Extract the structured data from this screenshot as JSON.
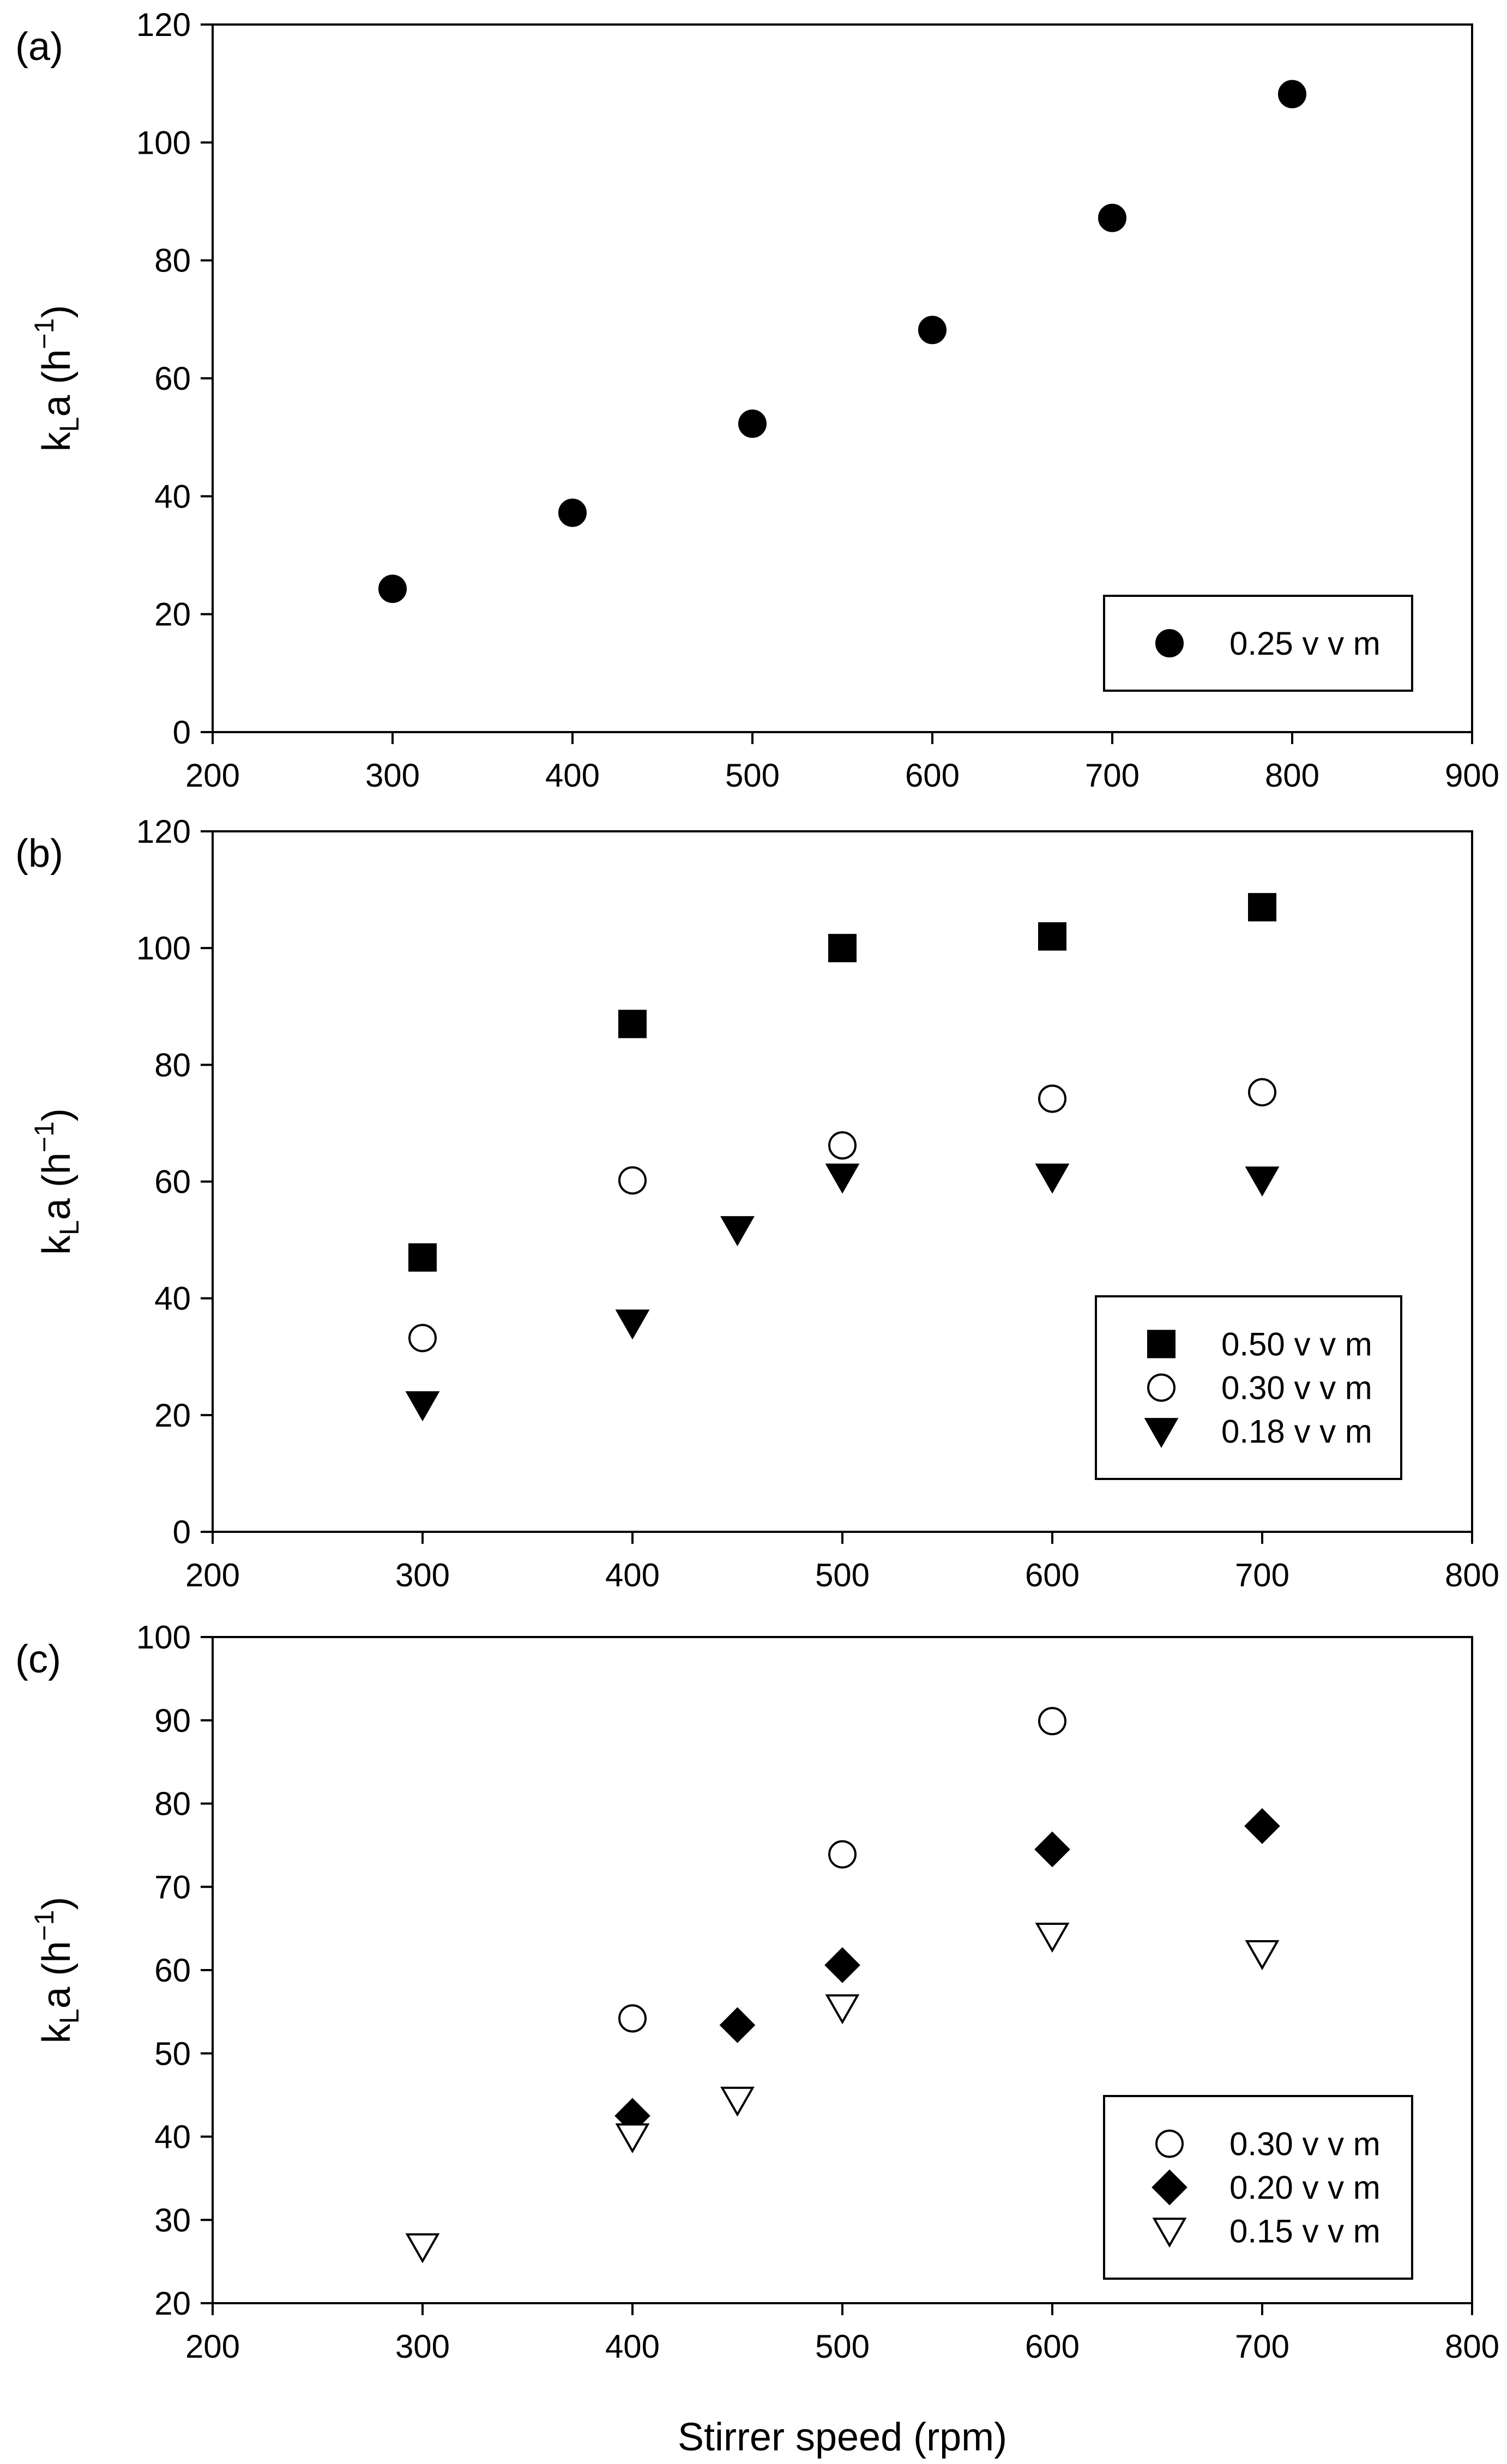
{
  "chart_data": [
    {
      "type": "scatter",
      "panel_label": "(a)",
      "title": "",
      "xlabel": "",
      "ylabel": "k_L a (h^-1)",
      "ylabel_parts": {
        "base": "k",
        "sub": "L",
        "mid": "a (h",
        "sup": "−1",
        "end": ")"
      },
      "xlim": [
        200,
        900
      ],
      "ylim": [
        0,
        120
      ],
      "xticks": [
        200,
        300,
        400,
        500,
        600,
        700,
        800,
        900
      ],
      "yticks": [
        0,
        20,
        40,
        60,
        80,
        100,
        120
      ],
      "grid": false,
      "legend_position": "bottom-right",
      "series": [
        {
          "name": "0.25 v v m",
          "marker": "circle-filled",
          "x": [
            300,
            400,
            500,
            600,
            700,
            800
          ],
          "y": [
            24.3,
            37.2,
            52.3,
            68.2,
            87.2,
            108.2
          ]
        }
      ]
    },
    {
      "type": "scatter",
      "panel_label": "(b)",
      "title": "",
      "xlabel": "",
      "ylabel": "k_L a (h^-1)",
      "ylabel_parts": {
        "base": "k",
        "sub": "L",
        "mid": "a (h",
        "sup": "−1",
        "end": ")"
      },
      "xlim": [
        200,
        800
      ],
      "ylim": [
        0,
        120
      ],
      "xticks": [
        200,
        300,
        400,
        500,
        600,
        700,
        800
      ],
      "yticks": [
        0,
        20,
        40,
        60,
        80,
        100,
        120
      ],
      "grid": false,
      "legend_position": "bottom-right",
      "series": [
        {
          "name": "0.50 v v m",
          "marker": "square-filled",
          "x": [
            300,
            400,
            500,
            600,
            700
          ],
          "y": [
            47.0,
            87.0,
            100.0,
            102.0,
            107.0
          ]
        },
        {
          "name": "0.30 v v m",
          "marker": "circle-open",
          "x": [
            300,
            400,
            500,
            600,
            700
          ],
          "y": [
            33.2,
            60.2,
            66.2,
            74.2,
            75.3
          ]
        },
        {
          "name": "0.18 v v m",
          "marker": "triangle-down-filled",
          "x": [
            300,
            400,
            450,
            500,
            600,
            700
          ],
          "y": [
            21.8,
            35.8,
            51.8,
            60.8,
            60.8,
            60.3
          ]
        }
      ]
    },
    {
      "type": "scatter",
      "panel_label": "(c)",
      "title": "",
      "xlabel": "Stirrer speed (rpm)",
      "ylabel": "k_L a (h^-1)",
      "ylabel_parts": {
        "base": "k",
        "sub": "L",
        "mid": "a (h",
        "sup": "−1",
        "end": ")"
      },
      "xlim": [
        200,
        800
      ],
      "ylim": [
        20,
        100
      ],
      "xticks": [
        200,
        300,
        400,
        500,
        600,
        700,
        800
      ],
      "yticks": [
        20,
        30,
        40,
        50,
        60,
        70,
        80,
        90,
        100
      ],
      "grid": false,
      "legend_position": "bottom-right",
      "series": [
        {
          "name": "0.30 v v m",
          "marker": "circle-open",
          "x": [
            400,
            500,
            600
          ],
          "y": [
            54.2,
            73.9,
            89.9
          ]
        },
        {
          "name": "0.20 v v m",
          "marker": "diamond-filled",
          "x": [
            400,
            450,
            500,
            600,
            700
          ],
          "y": [
            42.5,
            53.4,
            60.6,
            74.5,
            77.3
          ]
        },
        {
          "name": "0.15 v v m",
          "marker": "triangle-down-open",
          "x": [
            300,
            400,
            450,
            500,
            600,
            700
          ],
          "y": [
            26.8,
            40.0,
            44.4,
            55.5,
            64.1,
            62.0
          ]
        }
      ]
    }
  ]
}
